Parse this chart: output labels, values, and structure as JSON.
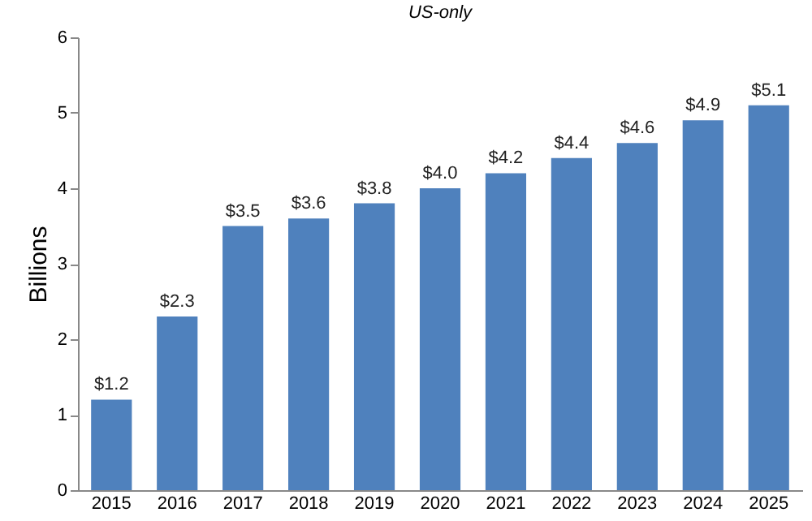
{
  "chart_data": {
    "type": "bar",
    "subtitle": "US-only",
    "ylabel": "Billions",
    "categories": [
      "2015",
      "2016",
      "2017",
      "2018",
      "2019",
      "2020",
      "2021",
      "2022",
      "2023",
      "2024",
      "2025"
    ],
    "values": [
      1.2,
      2.3,
      3.5,
      3.6,
      3.8,
      4.0,
      4.2,
      4.4,
      4.6,
      4.9,
      5.1
    ],
    "value_labels": [
      "$1.2",
      "$2.3",
      "$3.5",
      "$3.6",
      "$3.8",
      "$4.0",
      "$4.2",
      "$4.4",
      "$4.6",
      "$4.9",
      "$5.1"
    ],
    "color": "#4f81bd",
    "ylim": [
      0,
      6
    ],
    "yticks": [
      0,
      1,
      2,
      3,
      4,
      5,
      6
    ]
  }
}
